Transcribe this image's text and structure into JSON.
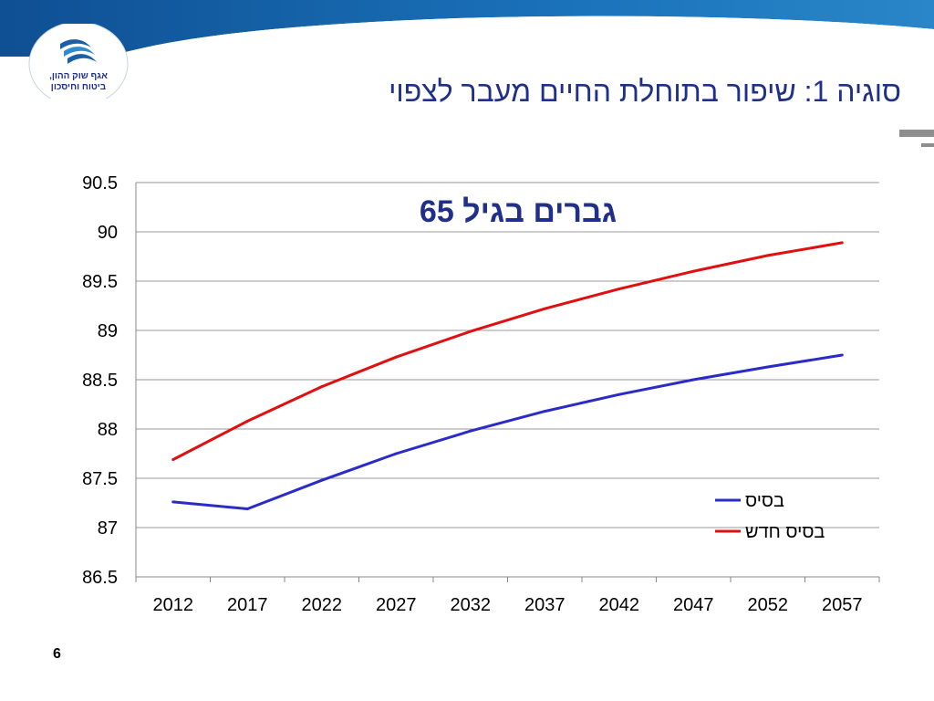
{
  "slide": {
    "title": "סוגיה 1: שיפור בתוחלת החיים מעבר לצפוי",
    "page_number": "6",
    "logo_text_line1": "אגף שוק ההון,",
    "logo_text_line2": "ביטוח וחיסכון"
  },
  "colors": {
    "header_blue": "#1b6fb4",
    "title_text": "#1f2f8a",
    "series_base": "#2b2bc8",
    "series_new": "#e01010",
    "grid": "#999999",
    "rule": "#8e8e8e"
  },
  "chart_data": {
    "type": "line",
    "title": "גברים בגיל 65",
    "xlabel": "",
    "ylabel": "",
    "x": [
      2012,
      2017,
      2022,
      2027,
      2032,
      2037,
      2042,
      2047,
      2052,
      2057
    ],
    "categories": [
      "2012",
      "2017",
      "2022",
      "2027",
      "2032",
      "2037",
      "2042",
      "2047",
      "2052",
      "2057"
    ],
    "ylim": [
      86.5,
      90.5
    ],
    "yticks": [
      "86.5",
      "87",
      "87.5",
      "88",
      "88.5",
      "89",
      "89.5",
      "90",
      "90.5"
    ],
    "grid": "horizontal",
    "legend_position": "right, lower middle",
    "series": [
      {
        "name": "בסיס",
        "color": "#2b2bc8",
        "values": [
          87.26,
          87.19,
          87.48,
          87.75,
          87.98,
          88.18,
          88.35,
          88.5,
          88.63,
          88.75
        ]
      },
      {
        "name": "בסיס חדש",
        "color": "#e01010",
        "values": [
          87.69,
          88.08,
          88.43,
          88.73,
          88.99,
          89.22,
          89.42,
          89.6,
          89.76,
          89.89
        ]
      }
    ]
  }
}
